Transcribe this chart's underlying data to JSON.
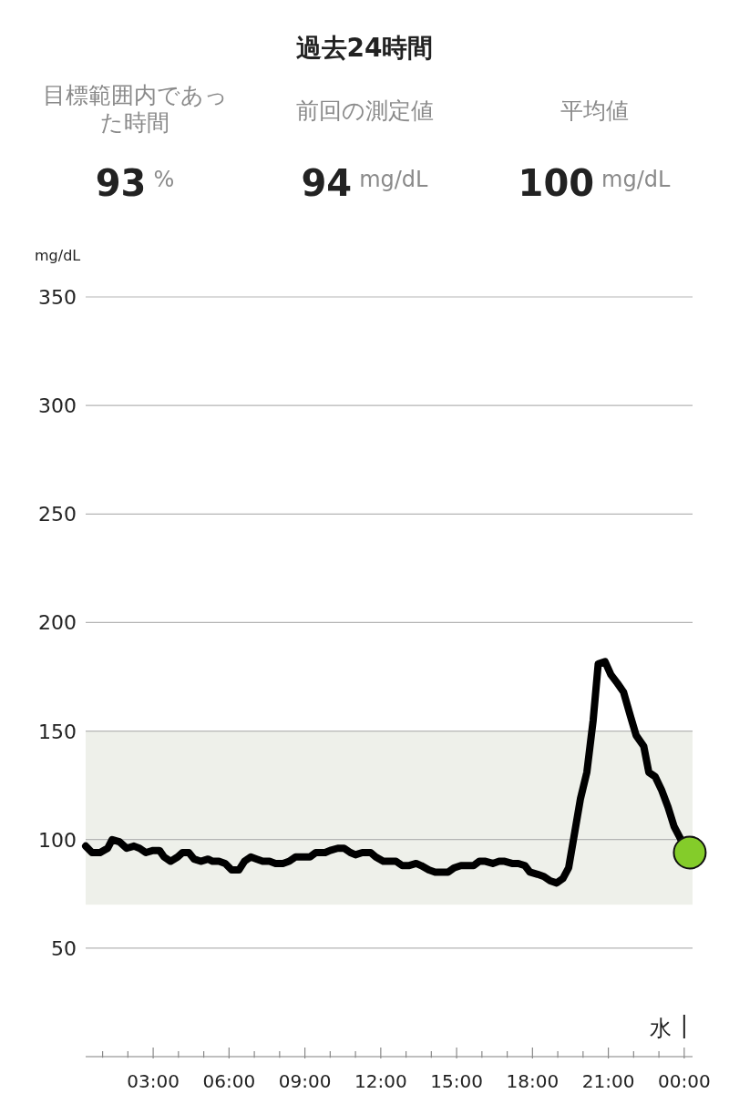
{
  "chart_data": {
    "type": "line",
    "title": "過去24時間",
    "annotations": [
      "目標範囲内であった時間",
      "93",
      "%",
      "前回の測定値",
      "94",
      "mg/dL",
      "平均値",
      "100",
      "mg/dL"
    ],
    "ylabel": "mg/dL",
    "ylim": [
      0,
      350
    ],
    "yticks": [
      50,
      100,
      150,
      200,
      250,
      300,
      350
    ],
    "xlim": [
      0.33,
      24.33
    ],
    "xticks": [
      {
        "value": 1,
        "label": null
      },
      {
        "value": 2,
        "label": null
      },
      {
        "value": 3,
        "label": "03:00"
      },
      {
        "value": 4,
        "label": null
      },
      {
        "value": 5,
        "label": null
      },
      {
        "value": 6,
        "label": "06:00"
      },
      {
        "value": 7,
        "label": null
      },
      {
        "value": 8,
        "label": null
      },
      {
        "value": 9,
        "label": "09:00"
      },
      {
        "value": 10,
        "label": null
      },
      {
        "value": 11,
        "label": null
      },
      {
        "value": 12,
        "label": "12:00"
      },
      {
        "value": 13,
        "label": null
      },
      {
        "value": 14,
        "label": null
      },
      {
        "value": 15,
        "label": "15:00"
      },
      {
        "value": 16,
        "label": null
      },
      {
        "value": 17,
        "label": null
      },
      {
        "value": 18,
        "label": "18:00"
      },
      {
        "value": 19,
        "label": null
      },
      {
        "value": 20,
        "label": null
      },
      {
        "value": 21,
        "label": "21:00"
      },
      {
        "value": 22,
        "label": null
      },
      {
        "value": 23,
        "label": null
      },
      {
        "value": 24,
        "label": "00:00"
      }
    ],
    "grid": "y",
    "line_style": "solid",
    "bands": [
      {
        "axis": "y",
        "from": 70,
        "to": 150,
        "color": "#eef0ea"
      }
    ],
    "ref_lines": [
      {
        "axis": "x",
        "value": 24,
        "label": "水",
        "color": "#222222"
      }
    ],
    "series": [
      {
        "color": "#000000",
        "x": [
          0.33,
          0.58,
          0.9,
          1.2,
          1.38,
          1.66,
          1.95,
          2.24,
          2.46,
          2.71,
          3.0,
          3.25,
          3.43,
          3.69,
          3.97,
          4.16,
          4.41,
          4.62,
          4.88,
          5.17,
          5.35,
          5.6,
          5.85,
          6.1,
          6.39,
          6.61,
          6.86,
          7.1,
          7.33,
          7.6,
          7.84,
          8.13,
          8.38,
          8.63,
          8.96,
          9.2,
          9.43,
          9.8,
          10.0,
          10.3,
          10.55,
          10.8,
          11.0,
          11.27,
          11.6,
          11.8,
          12.1,
          12.35,
          12.6,
          12.85,
          13.1,
          13.4,
          13.6,
          13.9,
          14.15,
          14.4,
          14.66,
          14.9,
          15.17,
          15.38,
          15.67,
          15.9,
          16.14,
          16.43,
          16.68,
          16.9,
          17.19,
          17.44,
          17.7,
          17.9,
          18.2,
          18.45,
          18.7,
          18.96,
          19.2,
          19.43,
          19.68,
          19.9,
          20.15,
          20.4,
          20.6,
          20.87,
          21.1,
          21.36,
          21.6,
          21.87,
          22.1,
          22.4,
          22.6,
          22.85,
          23.1,
          23.36,
          23.6,
          23.87
        ],
        "values": [
          97,
          94,
          94,
          96,
          100,
          99,
          96,
          97,
          96,
          94,
          95,
          95,
          92,
          90,
          92,
          94,
          94,
          91,
          90,
          91,
          90,
          90,
          89,
          86,
          86,
          90,
          92,
          91,
          90,
          90,
          89,
          89,
          90,
          92,
          92,
          92,
          94,
          94,
          95,
          96,
          96,
          94,
          93,
          94,
          94,
          92,
          90,
          90,
          90,
          88,
          88,
          89,
          88,
          86,
          85,
          85,
          85,
          87,
          88,
          88,
          88,
          90,
          90,
          89,
          90,
          90,
          89,
          89,
          88,
          85,
          84,
          83,
          81,
          80,
          82,
          87,
          104,
          119,
          131,
          155,
          181,
          182,
          176,
          172,
          168,
          157,
          148,
          143,
          131,
          129,
          123,
          115,
          106,
          100
        ]
      },
      {
        "type": "scatter",
        "marker": "circle",
        "color": "#84cc2a",
        "x": [
          24.22
        ],
        "values": [
          94
        ]
      }
    ]
  }
}
